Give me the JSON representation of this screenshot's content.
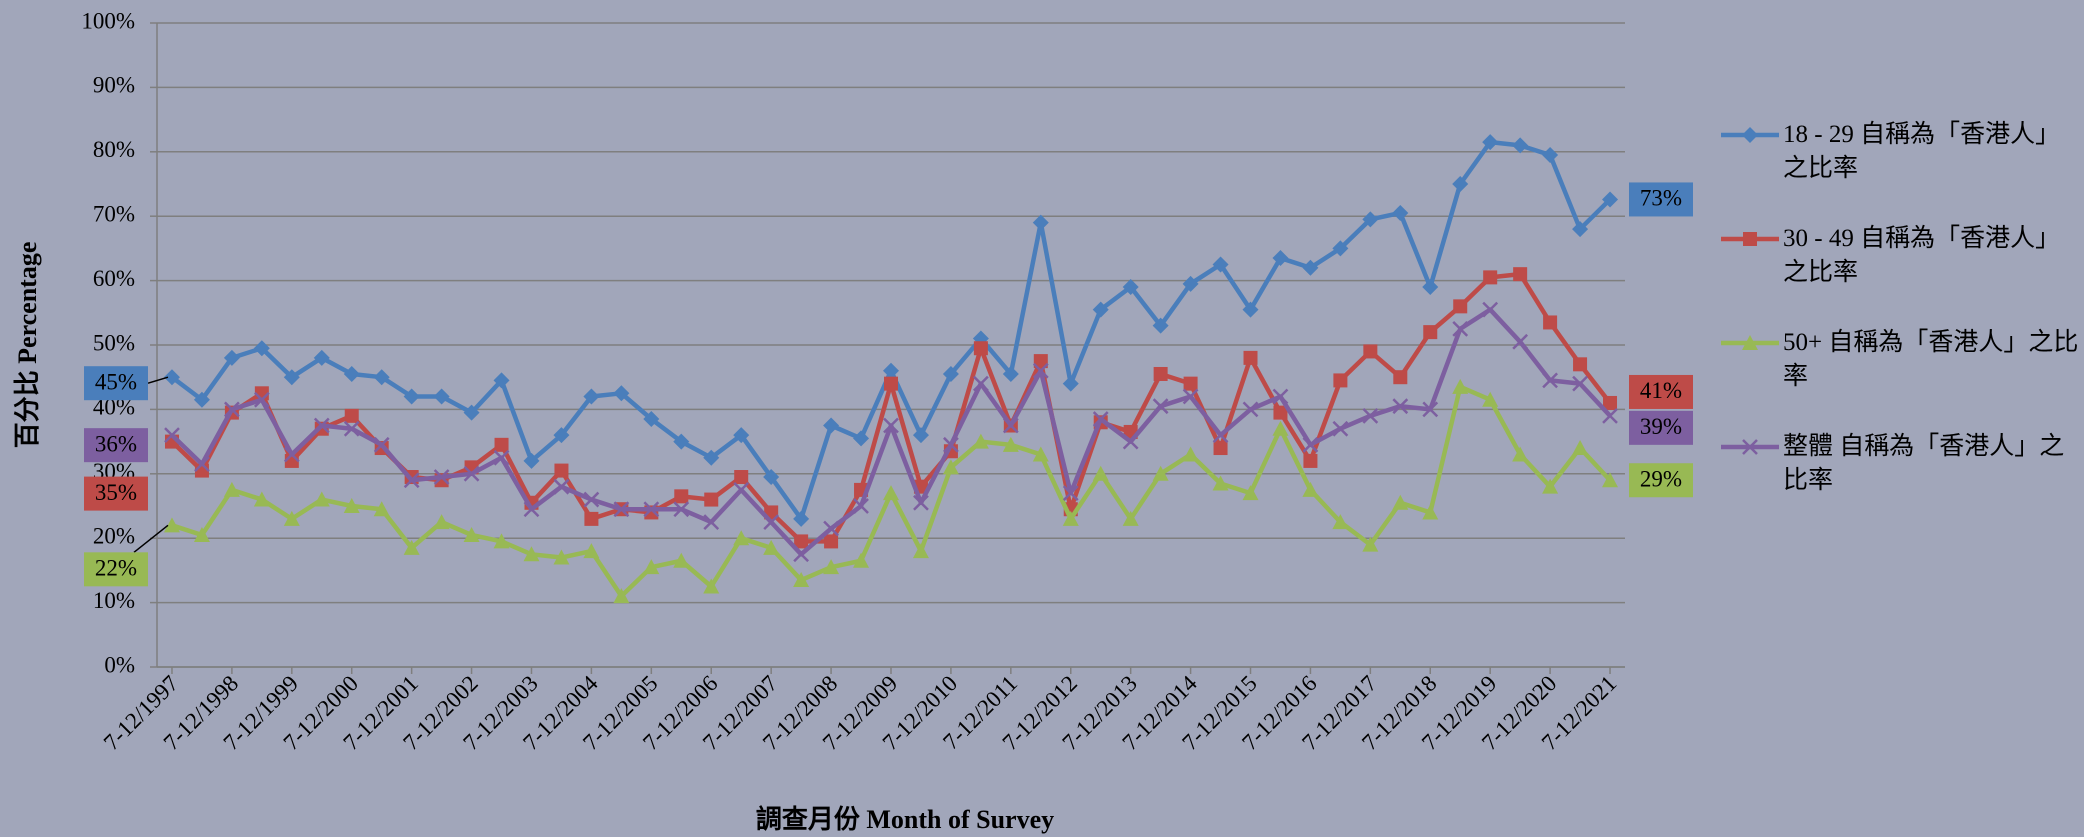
{
  "chart_data": {
    "type": "line",
    "y_axis_label": "百分比 Percentage",
    "x_axis_label": "調查月份 Month of Survey",
    "ylim": [
      0,
      100
    ],
    "yticks": [
      {
        "value": 0,
        "label": "0%"
      },
      {
        "value": 10,
        "label": "10%"
      },
      {
        "value": 20,
        "label": "20%"
      },
      {
        "value": 30,
        "label": "30%"
      },
      {
        "value": 40,
        "label": "40%"
      },
      {
        "value": 50,
        "label": "50%"
      },
      {
        "value": 60,
        "label": "60%"
      },
      {
        "value": 70,
        "label": "70%"
      },
      {
        "value": 80,
        "label": "80%"
      },
      {
        "value": 90,
        "label": "90%"
      },
      {
        "value": 100,
        "label": "100%"
      }
    ],
    "grid": true,
    "legend": "right",
    "categories": [
      "7-12/1997",
      null,
      "7-12/1998",
      null,
      "7-12/1999",
      null,
      "7-12/2000",
      null,
      "7-12/2001",
      null,
      "7-12/2002",
      null,
      "7-12/2003",
      null,
      "7-12/2004",
      null,
      "7-12/2005",
      null,
      "7-12/2006",
      null,
      "7-12/2007",
      null,
      "7-12/2008",
      null,
      "7-12/2009",
      null,
      "7-12/2010",
      null,
      "7-12/2011",
      null,
      "7-12/2012",
      null,
      "7-12/2013",
      null,
      "7-12/2014",
      null,
      "7-12/2015",
      null,
      "7-12/2016",
      null,
      "7-12/2017",
      null,
      "7-12/2018",
      null,
      "7-12/2019",
      null,
      "7-12/2020",
      null,
      "7-12/2021"
    ],
    "series": [
      {
        "name": "18 - 29 自稱為「香港人」之比率",
        "color": "#4a7ebb",
        "marker": "diamond",
        "values": [
          45,
          41.5,
          48,
          49.5,
          45,
          48,
          45.5,
          45,
          42,
          42,
          39.5,
          44.5,
          32,
          36,
          42,
          42.5,
          38.5,
          35,
          32.5,
          36,
          29.5,
          23,
          37.5,
          35.5,
          46,
          36,
          45.5,
          51,
          45.5,
          69,
          44,
          55.5,
          59,
          53,
          59.5,
          62.5,
          55.5,
          63.5,
          62,
          65,
          69.5,
          70.5,
          59,
          75,
          81.5,
          81,
          79.5,
          68,
          72.6
        ],
        "value_labels": [
          "45%",
          null,
          null,
          null,
          null,
          null,
          null,
          null,
          null,
          null,
          null,
          null,
          null,
          null,
          null,
          null,
          null,
          null,
          null,
          null,
          null,
          null,
          null,
          null,
          null,
          null,
          null,
          null,
          null,
          null,
          null,
          null,
          null,
          null,
          null,
          null,
          null,
          null,
          null,
          null,
          null,
          null,
          null,
          null,
          null,
          null,
          null,
          null,
          "73%"
        ]
      },
      {
        "name": "30 - 49 自稱為「香港人」之比率",
        "color": "#be4b48",
        "marker": "square",
        "values": [
          35,
          30.5,
          39.5,
          42.5,
          32,
          37,
          39,
          34,
          29.5,
          29,
          31,
          34.5,
          25.5,
          30.5,
          23,
          24.5,
          24,
          26.5,
          26,
          29.5,
          24,
          19.5,
          19.5,
          27.5,
          44,
          28,
          33.5,
          49.5,
          37.5,
          47.5,
          24.5,
          38,
          36.5,
          45.5,
          44,
          34,
          48,
          39.5,
          32,
          44.5,
          49,
          45,
          52,
          56,
          60.5,
          61,
          53.5,
          47,
          41
        ],
        "value_labels": [
          "35%",
          null,
          null,
          null,
          null,
          null,
          null,
          null,
          null,
          null,
          null,
          null,
          null,
          null,
          null,
          null,
          null,
          null,
          null,
          null,
          null,
          null,
          null,
          null,
          null,
          null,
          null,
          null,
          null,
          null,
          null,
          null,
          null,
          null,
          null,
          null,
          null,
          null,
          null,
          null,
          null,
          null,
          null,
          null,
          null,
          null,
          null,
          null,
          "41%"
        ]
      },
      {
        "name": "50+ 自稱為「香港人」之比率",
        "color": "#98b954",
        "marker": "triangle",
        "values": [
          22,
          20.5,
          27.5,
          26,
          23,
          26,
          25,
          24.5,
          18.5,
          22.5,
          20.5,
          19.5,
          17.5,
          17,
          18,
          11,
          15.5,
          16.5,
          12.5,
          20,
          18.5,
          13.5,
          15.5,
          16.5,
          27,
          18,
          31,
          35,
          34.5,
          33,
          23,
          30,
          23,
          30,
          33,
          28.5,
          27,
          37,
          27.5,
          22.5,
          19,
          25.5,
          24,
          43.5,
          41.5,
          33,
          28,
          34,
          29
        ],
        "value_labels": [
          "22%",
          null,
          null,
          null,
          null,
          null,
          null,
          null,
          null,
          null,
          null,
          null,
          null,
          null,
          null,
          null,
          null,
          null,
          null,
          null,
          null,
          null,
          null,
          null,
          null,
          null,
          null,
          null,
          null,
          null,
          null,
          null,
          null,
          null,
          null,
          null,
          null,
          null,
          null,
          null,
          null,
          null,
          null,
          null,
          null,
          null,
          null,
          null,
          "29%"
        ]
      },
      {
        "name": "整體 自稱為「香港人」之比率",
        "color": "#7d5fa0",
        "marker": "x",
        "values": [
          36,
          31.5,
          40,
          41.5,
          33,
          37.5,
          37,
          34.5,
          29,
          29.5,
          30,
          32.5,
          24.5,
          28,
          26,
          24.5,
          24.5,
          24.5,
          22.5,
          27.5,
          22.5,
          17.5,
          21.5,
          25,
          37.5,
          25.5,
          34.5,
          44,
          37.5,
          46,
          27,
          38.5,
          35,
          40.5,
          42,
          36,
          40,
          42,
          34.5,
          37,
          39,
          40.5,
          40,
          52.5,
          55.5,
          50.5,
          44.5,
          44,
          39
        ],
        "value_labels": [
          "36%",
          null,
          null,
          null,
          null,
          null,
          null,
          null,
          null,
          null,
          null,
          null,
          null,
          null,
          null,
          null,
          null,
          null,
          null,
          null,
          null,
          null,
          null,
          null,
          null,
          null,
          null,
          null,
          null,
          null,
          null,
          null,
          null,
          null,
          null,
          null,
          null,
          null,
          null,
          null,
          null,
          null,
          null,
          null,
          null,
          null,
          null,
          null,
          "39%"
        ]
      }
    ]
  }
}
